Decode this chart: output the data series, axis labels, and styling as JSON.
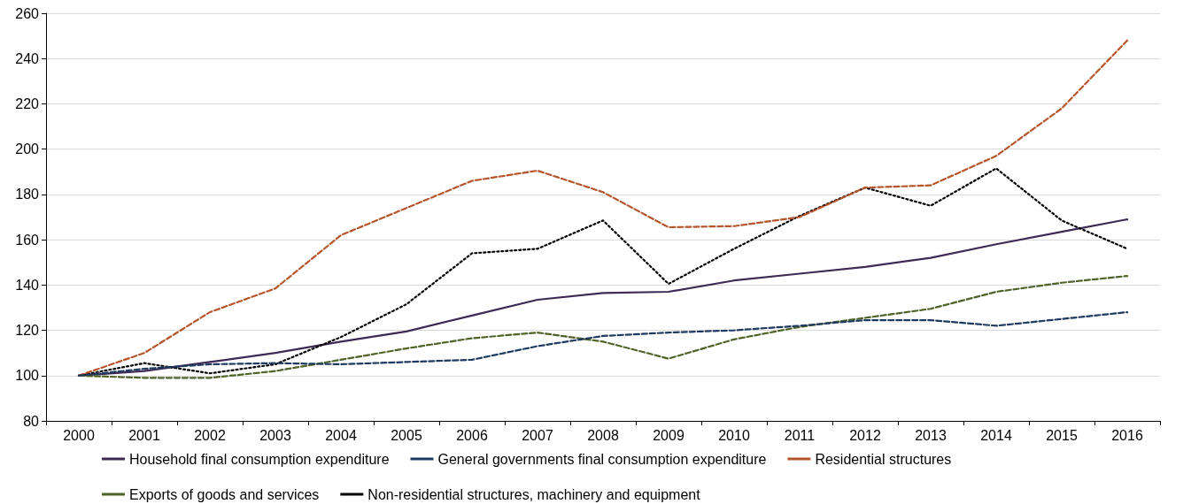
{
  "chart_data": {
    "type": "line",
    "categories": [
      "2000",
      "2001",
      "2002",
      "2003",
      "2004",
      "2005",
      "2006",
      "2007",
      "2008",
      "2009",
      "2010",
      "2011",
      "2012",
      "2013",
      "2014",
      "2015",
      "2016"
    ],
    "series": [
      {
        "name": "Household final consumption expenditure",
        "color": "#3d2b56",
        "line_style": "solid",
        "values": [
          100,
          102,
          106,
          110,
          115,
          119.5,
          126.5,
          133.5,
          136.5,
          137,
          142,
          145,
          148,
          152,
          158,
          163.5,
          169
        ]
      },
      {
        "name": "General governments final consumption expenditure",
        "color": "#1f3a5f",
        "line_style": "dashed",
        "values": [
          100,
          103,
          105,
          105.5,
          105,
          106,
          107,
          113,
          117.5,
          119,
          120,
          122,
          124.5,
          124.5,
          122,
          125,
          128
        ]
      },
      {
        "name": "Residential structures",
        "color": "#b5552b",
        "line_style": "dashed",
        "values": [
          100,
          110,
          128,
          138.5,
          162,
          174,
          186,
          190.5,
          181,
          165.5,
          166,
          170,
          183,
          184,
          197,
          218,
          248
        ]
      },
      {
        "name": "Exports of goods and services",
        "color": "#4f6228",
        "line_style": "dashed",
        "values": [
          100,
          99,
          99,
          102,
          107,
          112,
          116.5,
          119,
          115,
          107.5,
          116,
          121.5,
          125.5,
          129.5,
          137,
          141,
          144
        ]
      },
      {
        "name": "Non-residential structures, machinery and equipment",
        "color": "#000000",
        "line_style": "dotted",
        "values": [
          100,
          105.5,
          101,
          105,
          117,
          131.5,
          154,
          156,
          168.5,
          140.5,
          156,
          170.5,
          183,
          175,
          191.5,
          168.5,
          156
        ]
      }
    ],
    "ylim": [
      80,
      260
    ],
    "yticks": [
      80,
      100,
      120,
      140,
      160,
      180,
      200,
      220,
      240,
      260
    ],
    "grid": "y",
    "legend": "bottom",
    "marker": "none"
  }
}
